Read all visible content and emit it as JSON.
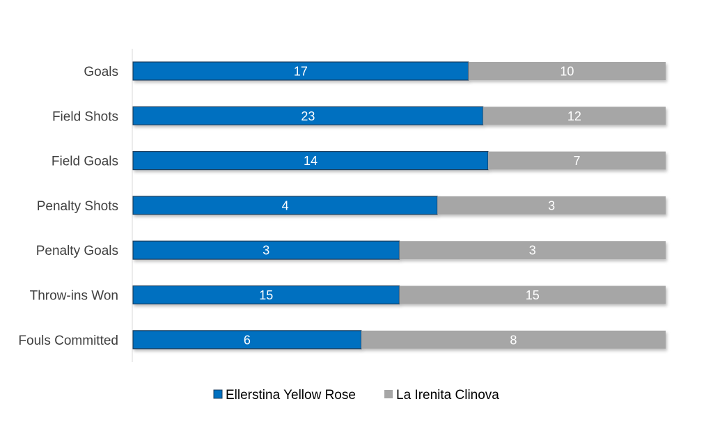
{
  "chart_data": {
    "type": "bar",
    "orientation": "horizontal",
    "stacking": "percent",
    "categories": [
      "Goals",
      "Field Shots",
      "Field Goals",
      "Penalty Shots",
      "Penalty Goals",
      "Throw-ins Won",
      "Fouls Committed"
    ],
    "series": [
      {
        "name": "Ellerstina Yellow Rose",
        "values": [
          17,
          23,
          14,
          4,
          3,
          15,
          6
        ],
        "color": "#0070c0"
      },
      {
        "name": "La Irenita Clinova",
        "values": [
          10,
          12,
          7,
          3,
          3,
          15,
          8
        ],
        "color": "#a6a6a6"
      }
    ],
    "legend_position": "bottom",
    "grid": false,
    "data_labels": true
  }
}
